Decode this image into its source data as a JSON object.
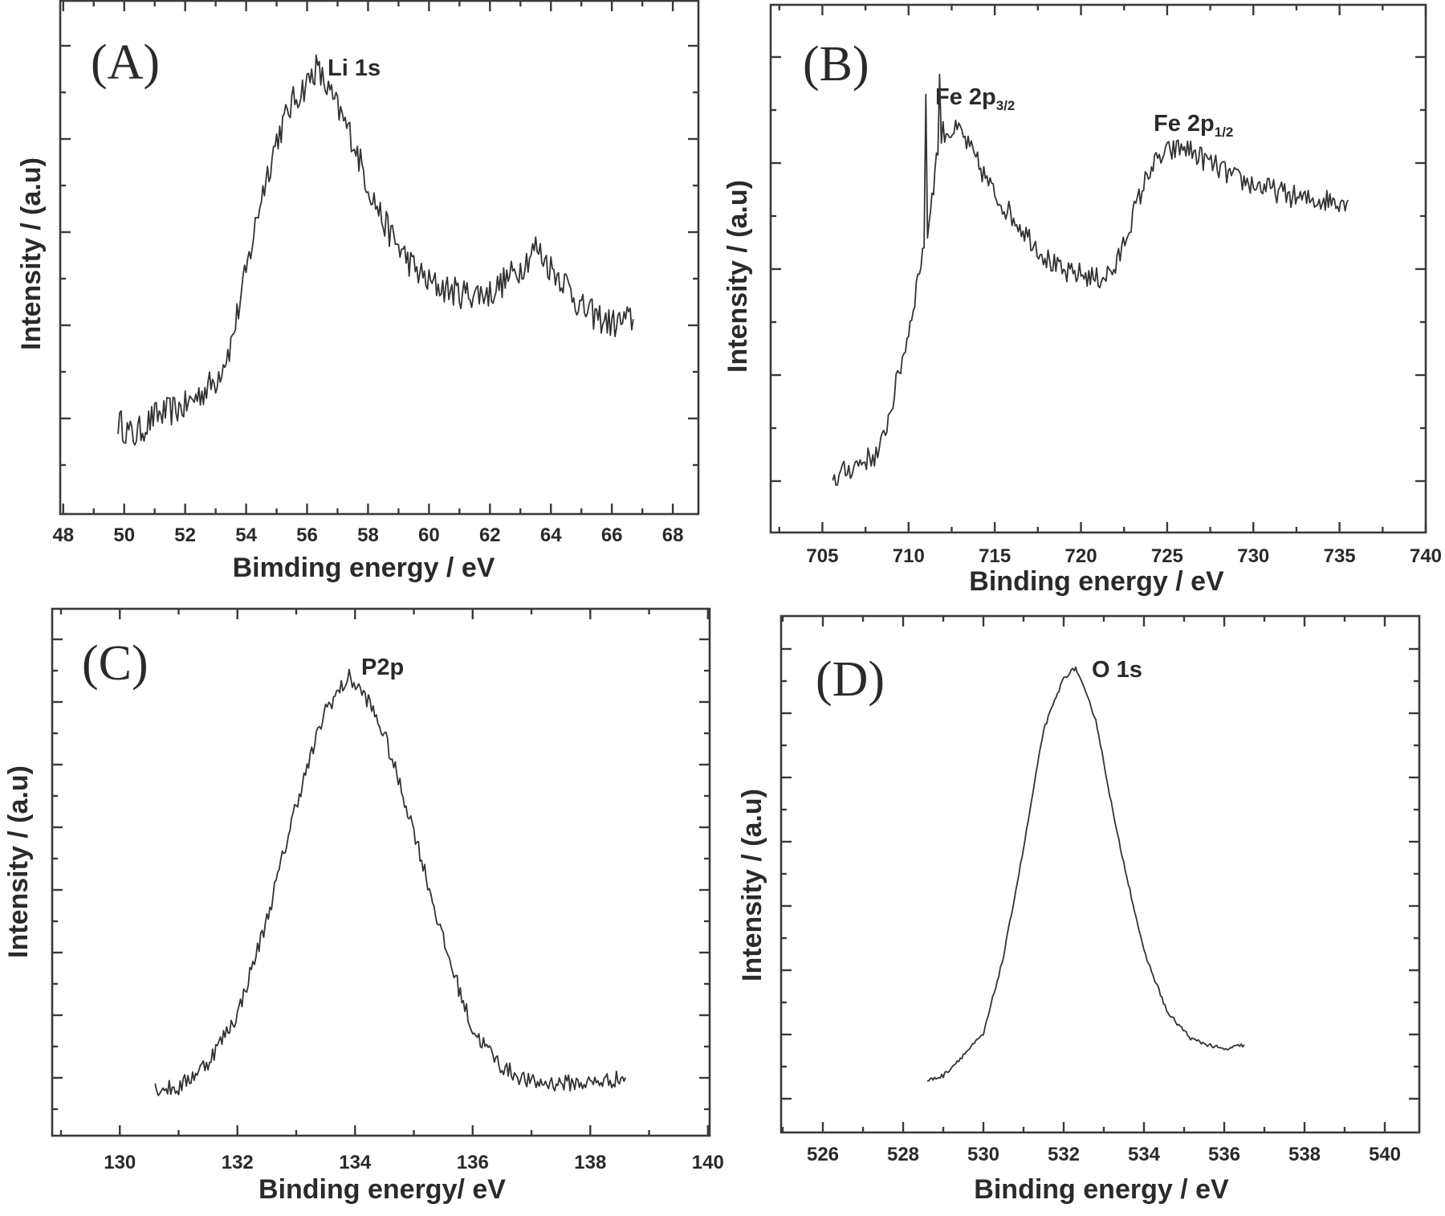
{
  "chart_data": [
    {
      "id": "A",
      "type": "line",
      "panel_label": "(A)",
      "xlabel": "Bimding energy / eV",
      "ylabel": "Intensity / (a.u)",
      "xlim": [
        47.9,
        68.84
      ],
      "ylim": [
        0,
        1
      ],
      "x_ticks": [
        48,
        50,
        52,
        54,
        56,
        58,
        60,
        62,
        64,
        66,
        68
      ],
      "annotations": [
        {
          "text": "Li 1s",
          "sub": ""
        }
      ],
      "noise": 0.03,
      "series": [
        {
          "name": "Li 1s",
          "x": [
            49.8,
            50.3,
            51,
            52,
            53,
            53.5,
            54,
            54.5,
            55,
            55.5,
            56,
            56.3,
            57,
            57.5,
            58,
            58.5,
            59,
            59.5,
            60,
            61,
            62,
            63,
            63.5,
            64,
            64.5,
            65,
            66,
            66.7
          ],
          "y": [
            0.18,
            0.15,
            0.19,
            0.21,
            0.26,
            0.33,
            0.47,
            0.62,
            0.73,
            0.8,
            0.84,
            0.87,
            0.79,
            0.73,
            0.64,
            0.57,
            0.52,
            0.48,
            0.45,
            0.43,
            0.43,
            0.48,
            0.52,
            0.48,
            0.45,
            0.4,
            0.37,
            0.38
          ]
        }
      ]
    },
    {
      "id": "B",
      "type": "line",
      "panel_label": "(B)",
      "xlabel": "Binding energy / eV",
      "ylabel": "Intensity / (a.u)",
      "xlim": [
        702,
        740
      ],
      "ylim": [
        0,
        1
      ],
      "x_ticks": [
        705,
        710,
        715,
        720,
        725,
        730,
        735,
        740
      ],
      "annotations": [
        {
          "text": "Fe 2p",
          "sub": "3/2"
        },
        {
          "text": "Fe 2p",
          "sub": "1/2"
        }
      ],
      "noise": 0.022,
      "series": [
        {
          "name": "Fe 2p",
          "x": [
            705.6,
            707,
            708.3,
            709,
            710,
            710.9,
            711,
            711.1,
            711.7,
            711.8,
            711.9,
            712,
            713,
            714,
            715,
            716,
            717,
            718,
            719,
            720,
            721,
            722,
            723,
            724,
            725,
            726,
            727,
            728,
            729,
            730,
            731,
            732,
            733,
            734,
            735.5
          ],
          "y": [
            0.1,
            0.13,
            0.15,
            0.24,
            0.38,
            0.55,
            0.81,
            0.57,
            0.73,
            0.86,
            0.75,
            0.76,
            0.76,
            0.7,
            0.64,
            0.6,
            0.56,
            0.52,
            0.49,
            0.49,
            0.48,
            0.5,
            0.6,
            0.69,
            0.72,
            0.73,
            0.71,
            0.69,
            0.67,
            0.66,
            0.65,
            0.64,
            0.63,
            0.63,
            0.63
          ]
        }
      ]
    },
    {
      "id": "C",
      "type": "line",
      "panel_label": "(C)",
      "xlabel": "Binding energy/ eV",
      "ylabel": "Intensity / (a.u)",
      "xlim": [
        128.85,
        140.03
      ],
      "ylim": [
        0,
        1
      ],
      "x_ticks": [
        130,
        132,
        134,
        136,
        138,
        140
      ],
      "annotations": [
        {
          "text": "P2p",
          "sub": ""
        }
      ],
      "noise": 0.016,
      "series": [
        {
          "name": "P2p",
          "x": [
            130.6,
            131,
            131.5,
            132,
            132.5,
            133,
            133.5,
            133.9,
            134.2,
            134.5,
            135,
            135.5,
            136,
            136.5,
            137,
            138,
            138.6
          ],
          "y": [
            0.09,
            0.09,
            0.14,
            0.23,
            0.41,
            0.63,
            0.81,
            0.87,
            0.83,
            0.76,
            0.58,
            0.37,
            0.2,
            0.13,
            0.1,
            0.1,
            0.11
          ]
        }
      ]
    },
    {
      "id": "D",
      "type": "line",
      "panel_label": "(D)",
      "xlabel": "Binding energy / eV",
      "ylabel": "Intensity / (a.u)",
      "xlim": [
        524.96,
        540.86
      ],
      "ylim": [
        0,
        1
      ],
      "x_ticks": [
        526,
        528,
        530,
        532,
        534,
        536,
        538,
        540
      ],
      "annotations": [
        {
          "text": "O 1s",
          "sub": ""
        }
      ],
      "noise": 0.004,
      "series": [
        {
          "name": "O 1s",
          "x": [
            528.6,
            529,
            529.5,
            530,
            530.5,
            531,
            531.5,
            532,
            532.3,
            532.8,
            533.3,
            534,
            534.6,
            535.2,
            536,
            536.5
          ],
          "y": [
            0.1,
            0.11,
            0.15,
            0.19,
            0.34,
            0.55,
            0.78,
            0.88,
            0.9,
            0.8,
            0.59,
            0.35,
            0.23,
            0.18,
            0.16,
            0.17
          ]
        }
      ]
    }
  ]
}
